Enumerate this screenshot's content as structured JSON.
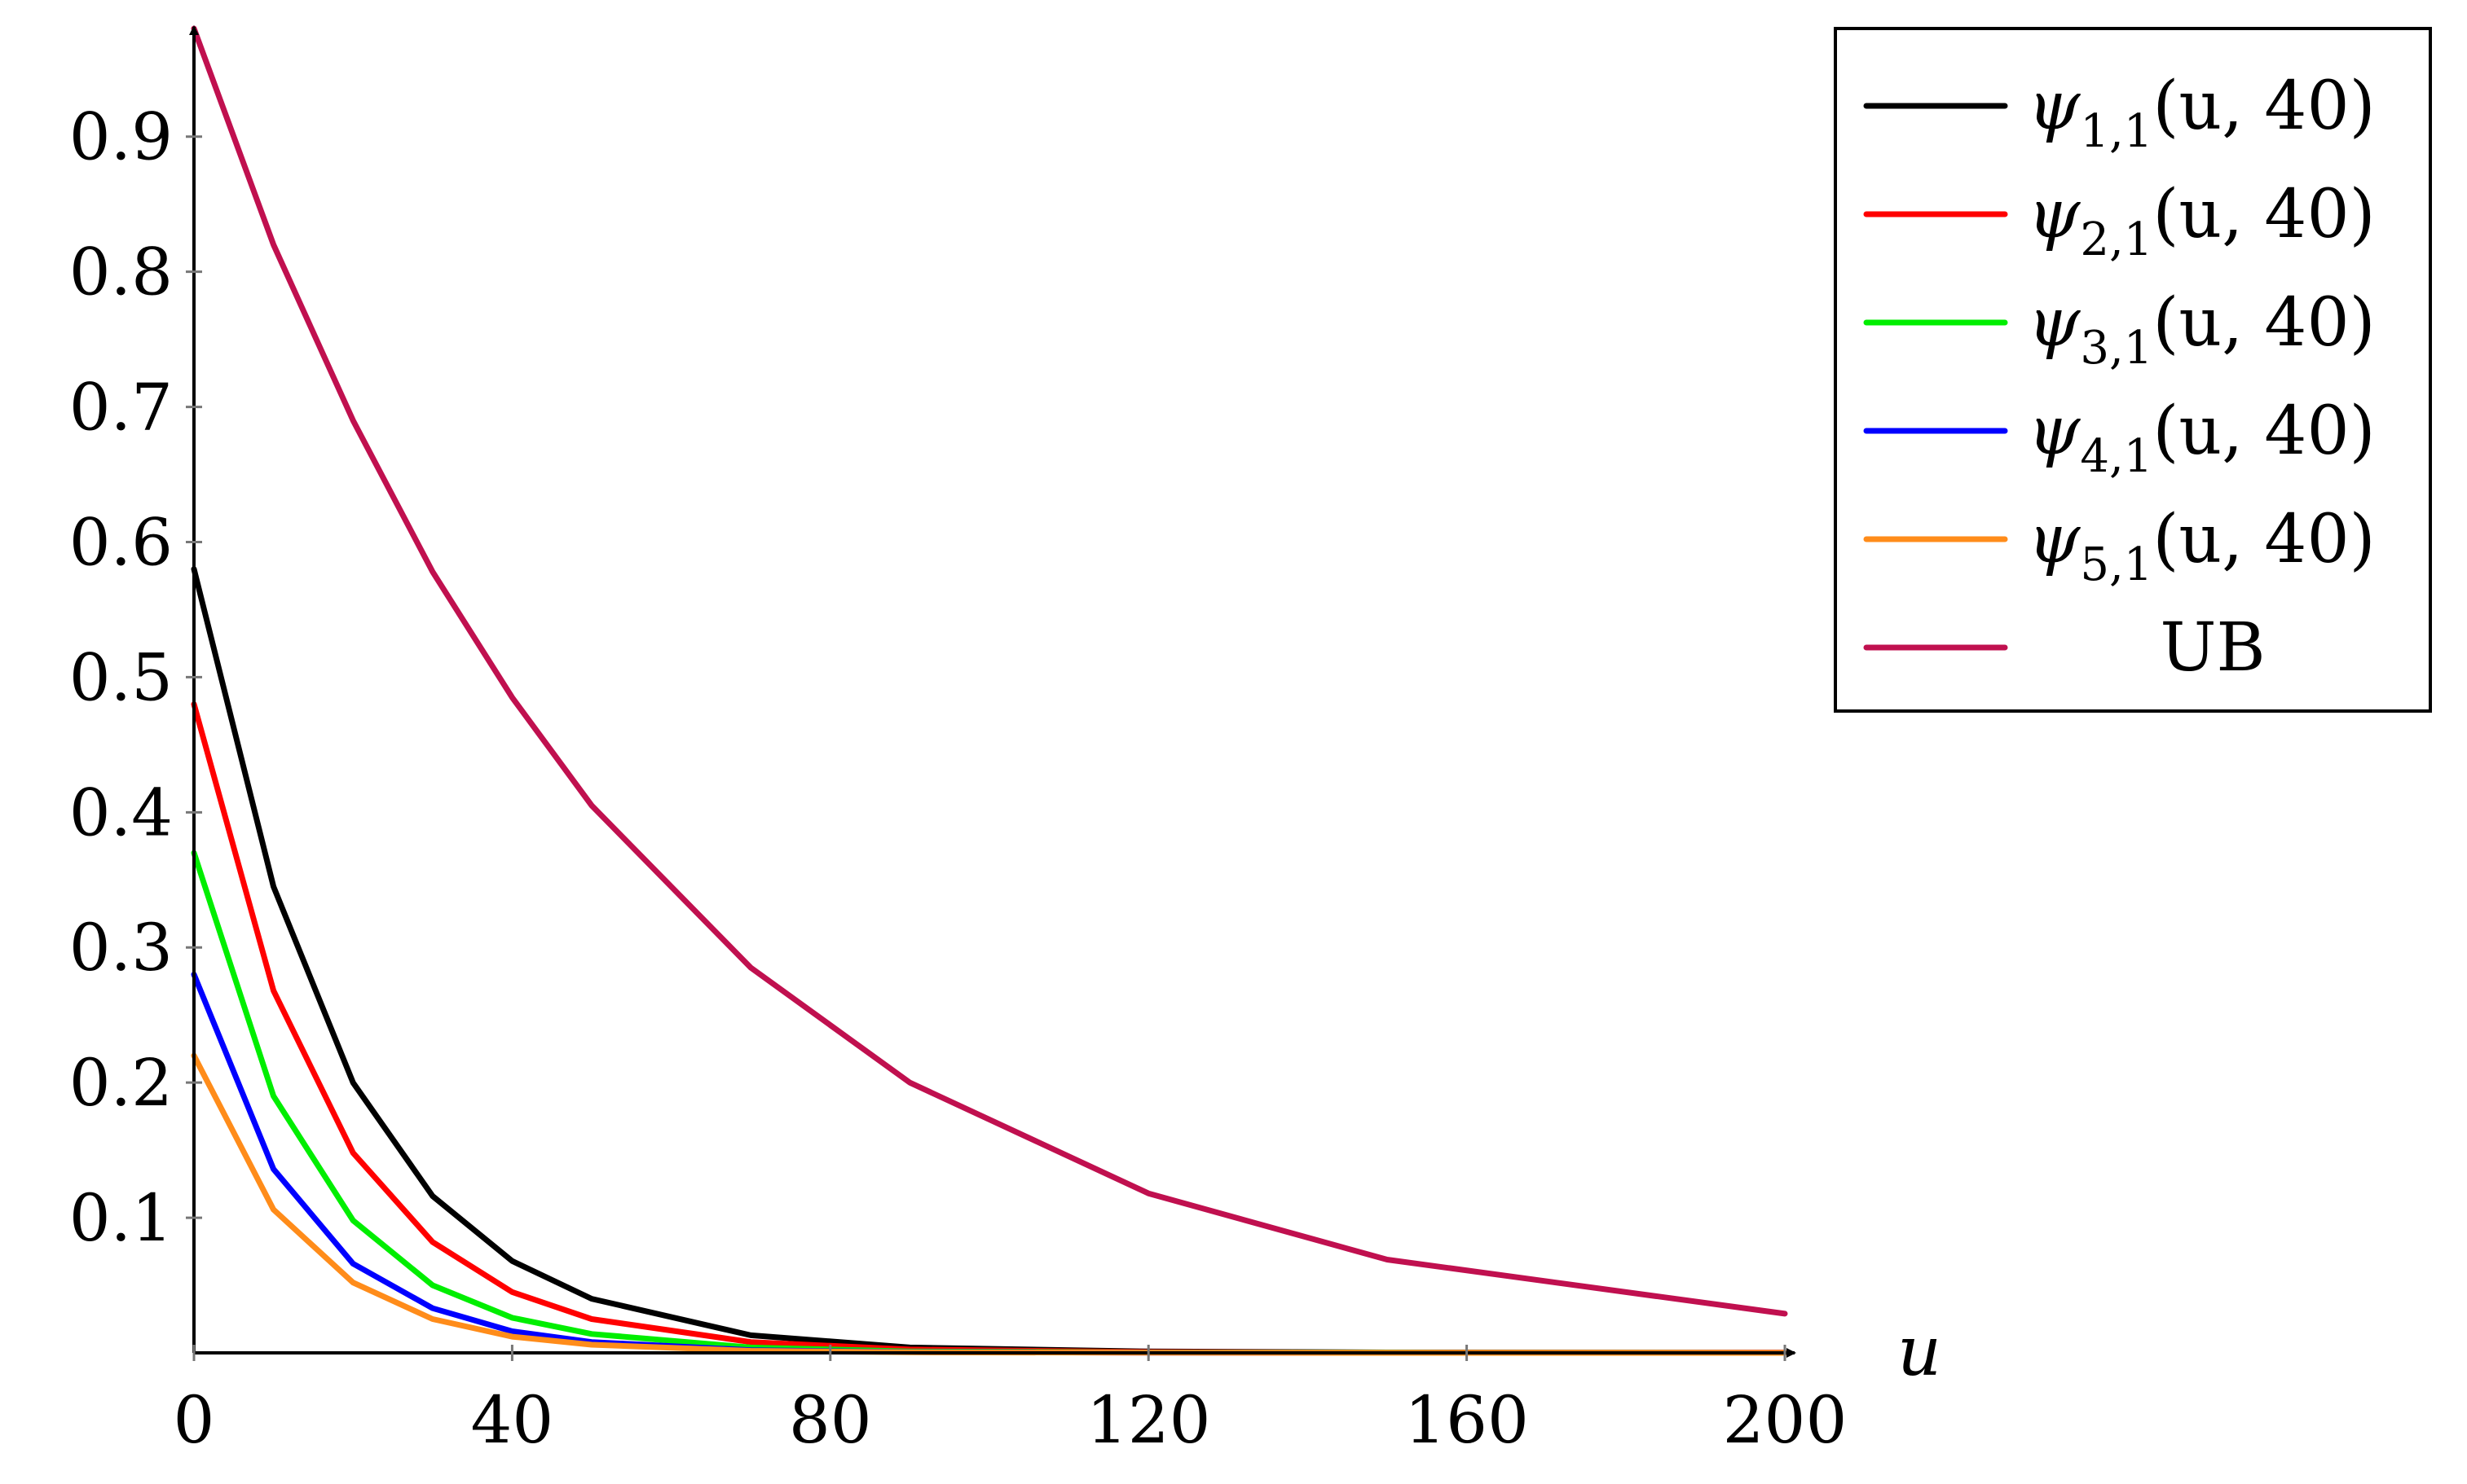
{
  "chart_data": {
    "type": "line",
    "xlabel": "u",
    "ylabel": "",
    "xlim": [
      0,
      200
    ],
    "ylim": [
      0,
      0.98
    ],
    "x_ticks": [
      0,
      40,
      80,
      120,
      160,
      200
    ],
    "x_tick_labels": [
      "0",
      "40",
      "80",
      "120",
      "160",
      "200"
    ],
    "y_ticks": [
      0.1,
      0.2,
      0.3,
      0.4,
      0.5,
      0.6,
      0.7,
      0.8,
      0.9
    ],
    "y_tick_labels": [
      "0.1",
      "0.2",
      "0.3",
      "0.4",
      "0.5",
      "0.6",
      "0.7",
      "0.8",
      "0.9"
    ],
    "grid": false,
    "legend_position": "top-right",
    "series": [
      {
        "name": "ψ1,1(u,40)",
        "label_main": "ψ",
        "label_sub": "1,1",
        "label_args": "(u, 40)",
        "color": "#000000",
        "x": [
          0,
          10,
          20,
          30,
          40,
          50,
          70,
          90,
          120,
          150,
          200
        ],
        "y": [
          0.58,
          0.345,
          0.2,
          0.116,
          0.068,
          0.04,
          0.013,
          0.004,
          0.001,
          0.0003,
          0.0001
        ]
      },
      {
        "name": "ψ2,1(u,40)",
        "label_main": "ψ",
        "label_sub": "2,1",
        "label_args": "(u, 40)",
        "color": "#ff0000",
        "x": [
          0,
          10,
          20,
          30,
          40,
          50,
          70,
          90,
          120,
          150,
          200
        ],
        "y": [
          0.48,
          0.268,
          0.148,
          0.082,
          0.045,
          0.025,
          0.008,
          0.0025,
          0.0006,
          0.0002,
          0.0001
        ]
      },
      {
        "name": "ψ3,1(u,40)",
        "label_main": "ψ",
        "label_sub": "3,1",
        "label_args": "(u, 40)",
        "color": "#00ee00",
        "x": [
          0,
          10,
          20,
          30,
          40,
          50,
          70,
          90,
          120,
          150,
          200
        ],
        "y": [
          0.37,
          0.19,
          0.098,
          0.05,
          0.026,
          0.014,
          0.004,
          0.001,
          0.0003,
          0.0001,
          0.0
        ]
      },
      {
        "name": "ψ4,1(u,40)",
        "label_main": "ψ",
        "label_sub": "4,1",
        "label_args": "(u, 40)",
        "color": "#0000ff",
        "x": [
          0,
          10,
          20,
          30,
          40,
          50,
          70,
          90,
          120,
          150,
          200
        ],
        "y": [
          0.28,
          0.136,
          0.066,
          0.033,
          0.016,
          0.008,
          0.002,
          0.0006,
          0.0001,
          0.0,
          0.0
        ]
      },
      {
        "name": "ψ5,1(u,40)",
        "label_main": "ψ",
        "label_sub": "5,1",
        "label_args": "(u, 40)",
        "color": "#ff8c1a",
        "x": [
          0,
          10,
          20,
          30,
          40,
          50,
          70,
          90,
          120,
          150,
          200
        ],
        "y": [
          0.22,
          0.106,
          0.052,
          0.025,
          0.012,
          0.006,
          0.0015,
          0.0004,
          0.0001,
          0.0,
          0.0
        ]
      },
      {
        "name": "UB",
        "label_main": "UB",
        "label_sub": "",
        "label_args": "",
        "color": "#c0104f",
        "x": [
          0,
          10,
          20,
          30,
          40,
          50,
          70,
          90,
          120,
          150,
          200
        ],
        "y": [
          0.98,
          0.82,
          0.69,
          0.578,
          0.485,
          0.405,
          0.285,
          0.2,
          0.118,
          0.069,
          0.029
        ]
      }
    ]
  }
}
